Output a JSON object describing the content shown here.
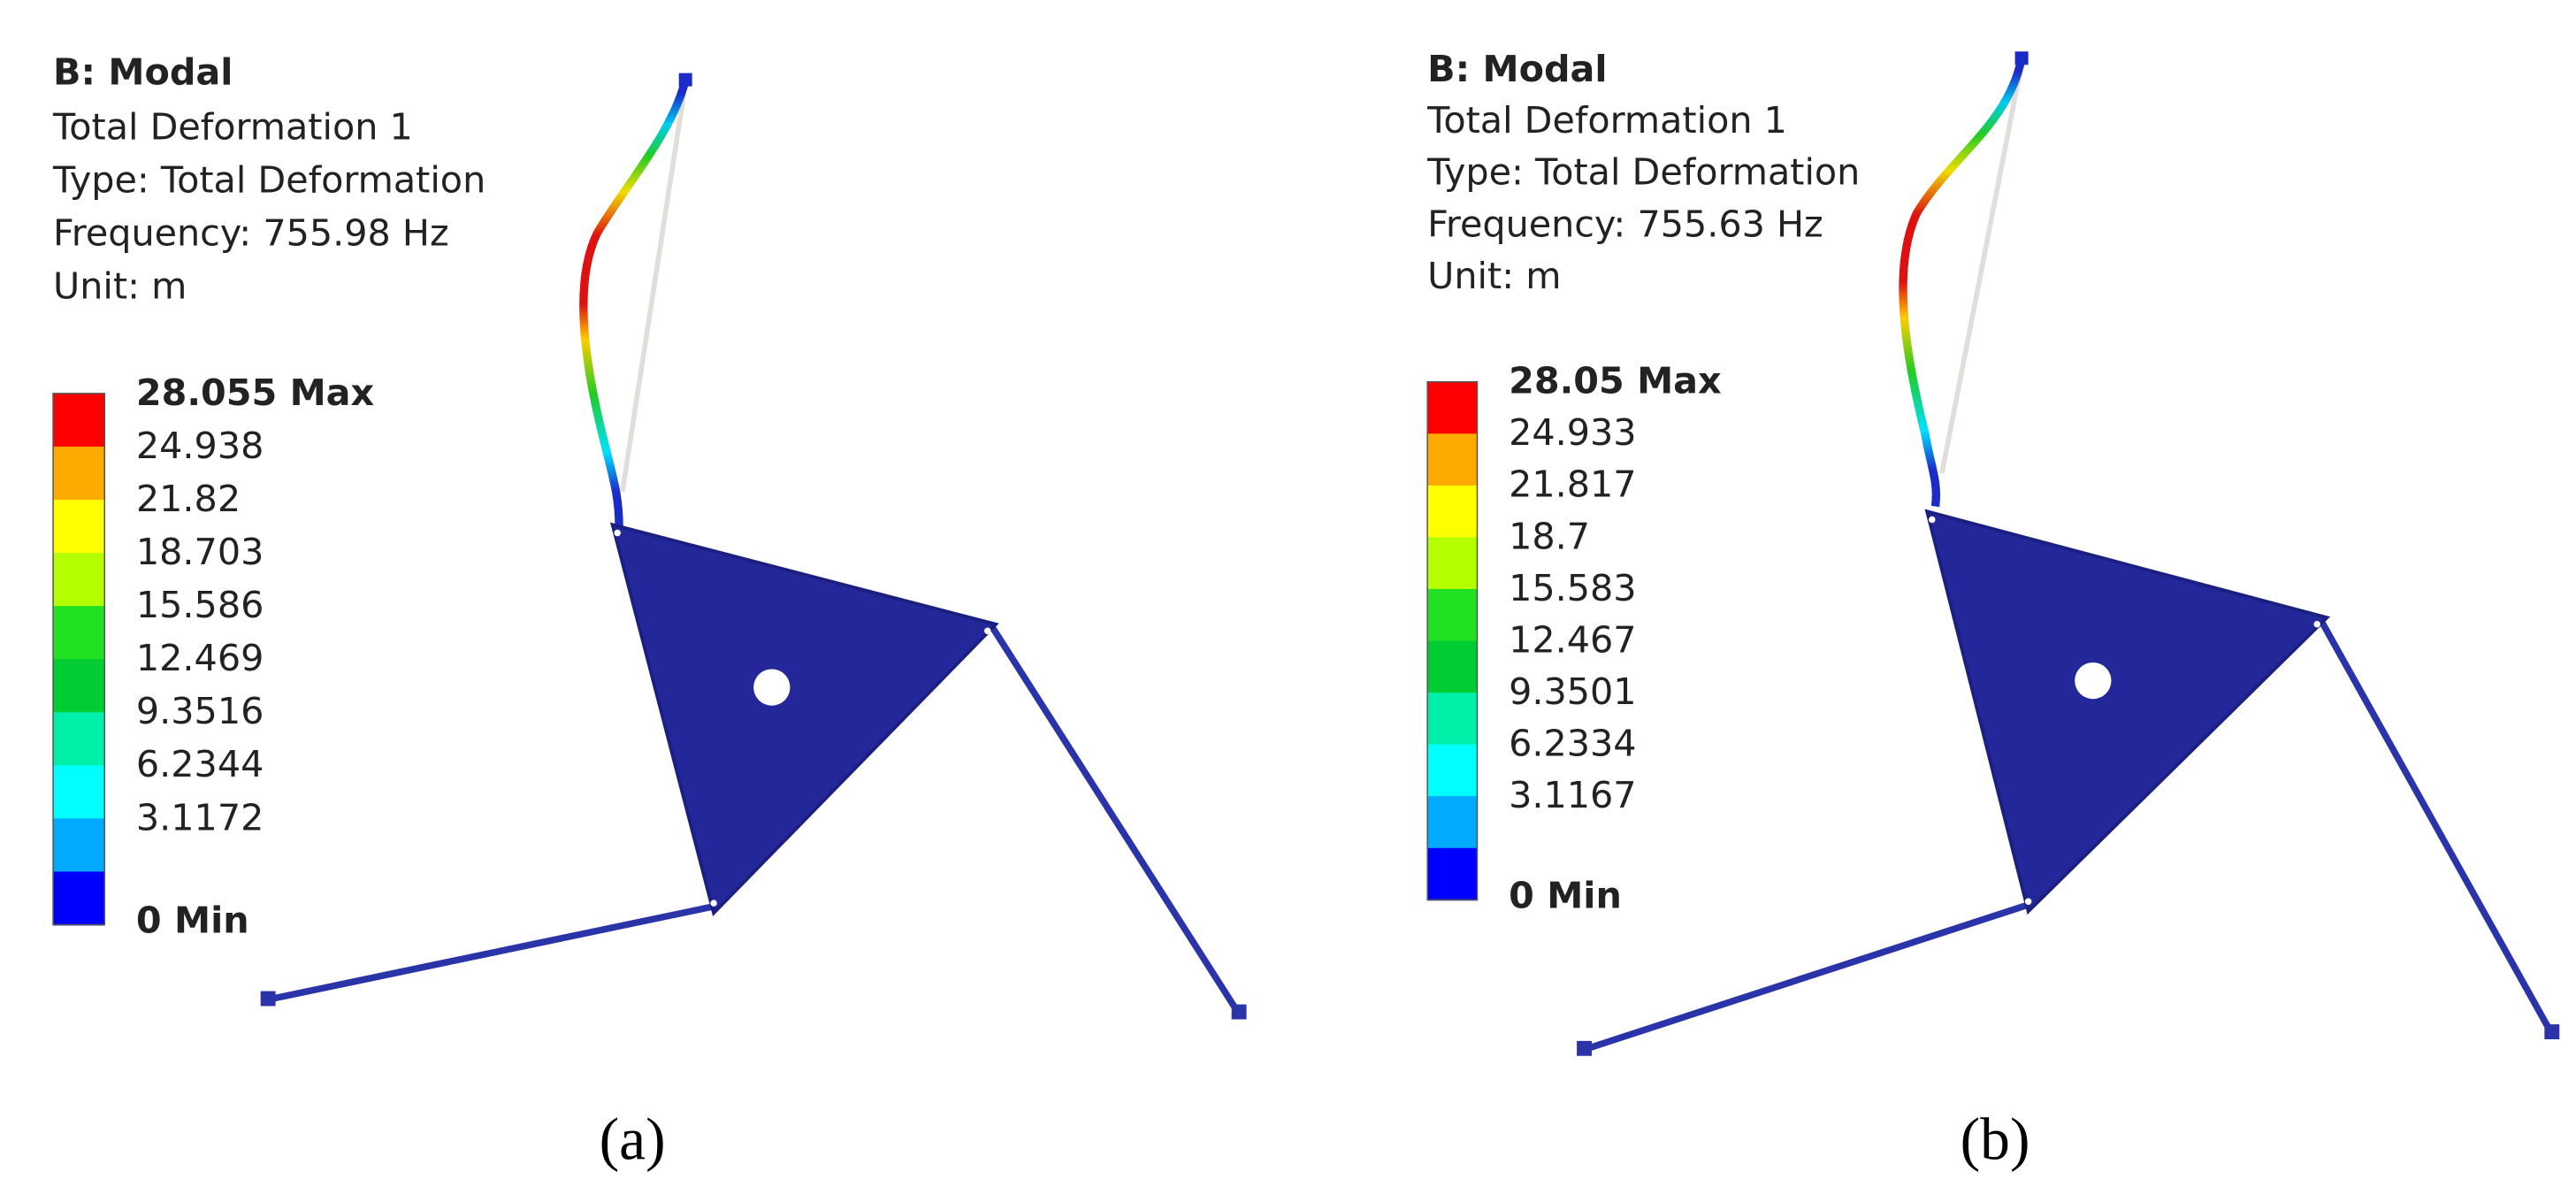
{
  "panels": [
    {
      "header": {
        "title": "B: Modal",
        "lines": [
          "Total Deformation 1",
          "Type: Total Deformation",
          "Frequency: 755.98 Hz",
          "Unit: m"
        ]
      },
      "legend": [
        "28.055 Max",
        "24.938",
        "21.82",
        "18.703",
        "15.586",
        "12.469",
        "9.3516",
        "6.2344",
        "3.1172",
        "0 Min"
      ],
      "caption": "(a)"
    },
    {
      "header": {
        "title": "B: Modal",
        "lines": [
          "Total Deformation 1",
          "Type: Total Deformation",
          "Frequency: 755.63 Hz",
          "Unit: m"
        ]
      },
      "legend": [
        "28.05 Max",
        "24.933",
        "21.817",
        "18.7",
        "15.583",
        "12.467",
        "9.3501",
        "6.2334",
        "3.1167",
        "0 Min"
      ],
      "caption": "(b)"
    }
  ]
}
